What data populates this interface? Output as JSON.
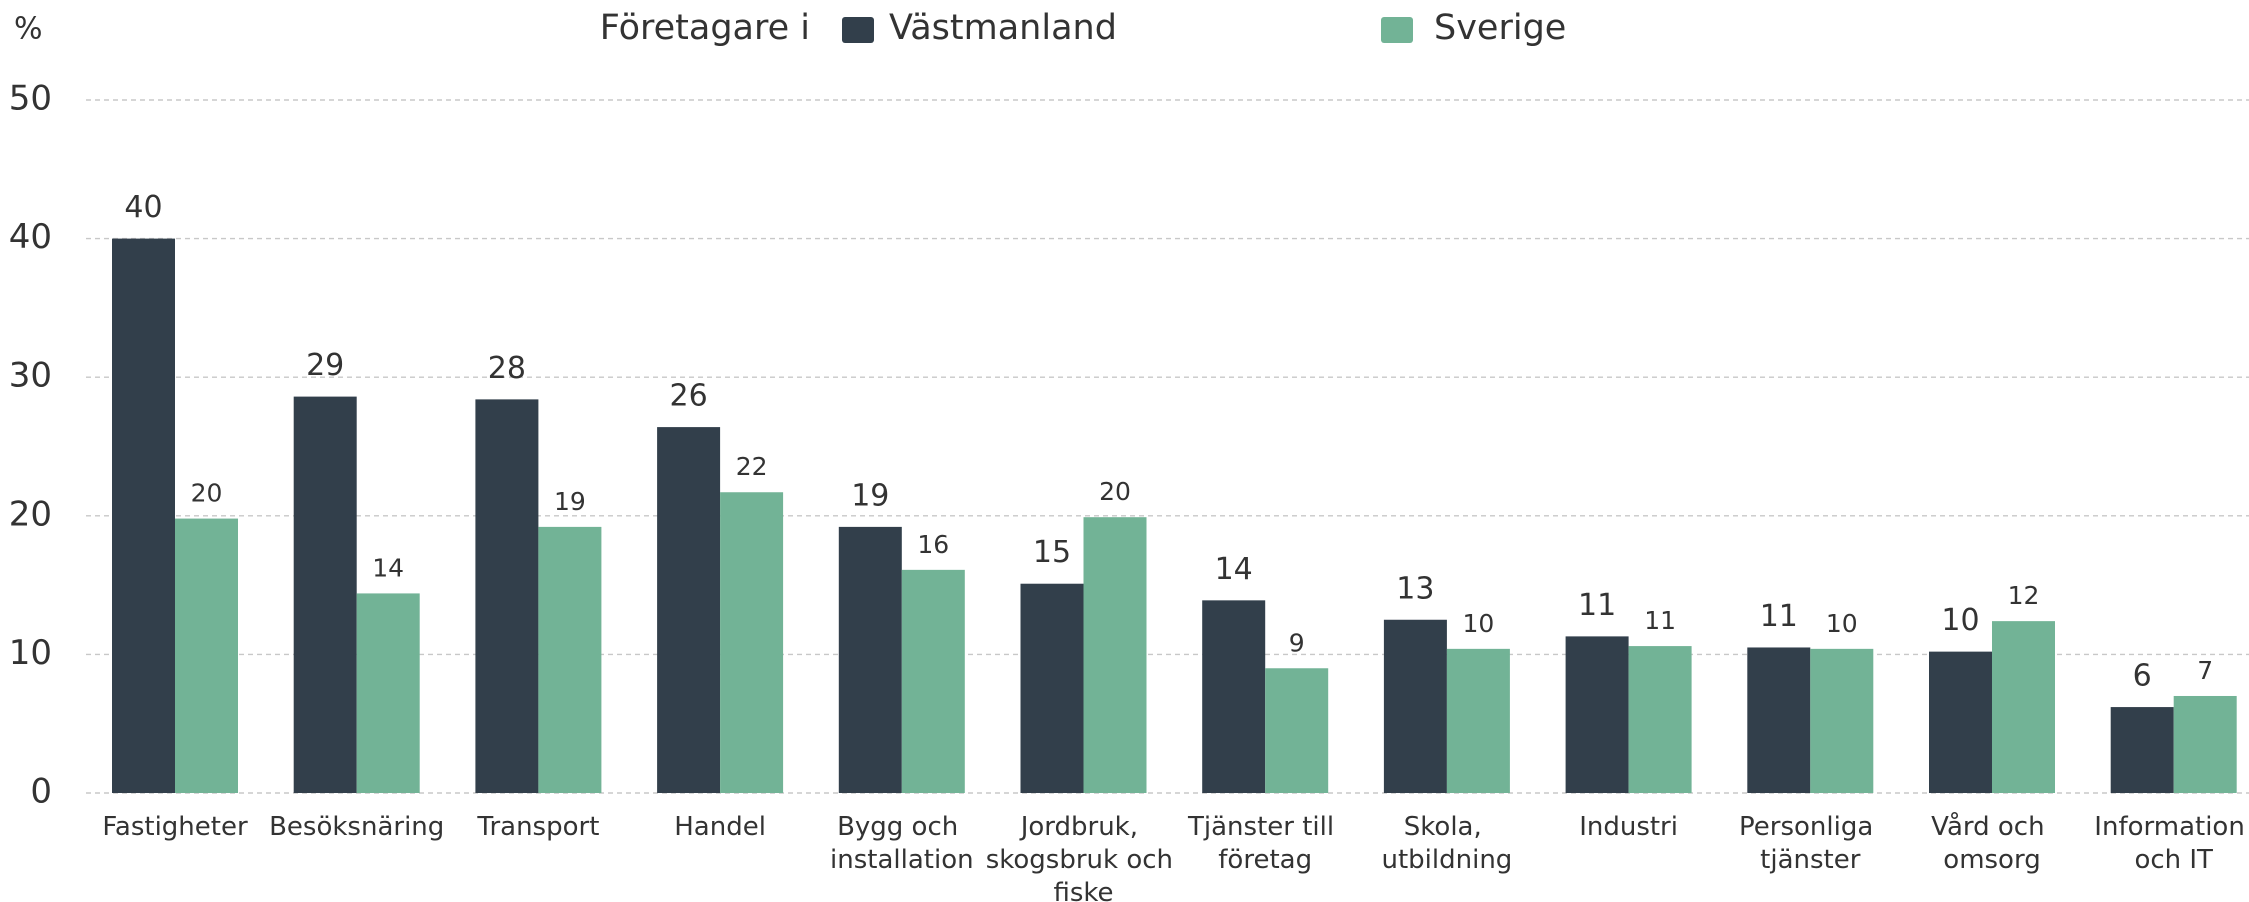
{
  "chart_data": {
    "type": "bar",
    "y_label": "%",
    "legend_title": "Företagare i",
    "categories": [
      "Fastigheter",
      "Besöksnäring",
      "Transport",
      "Handel",
      "Bygg och installation",
      "Jordbruk, skogsbruk och fiske",
      "Tjänster till företag",
      "Skola, utbildning",
      "Industri",
      "Personliga tjänster",
      "Vård och omsorg",
      "Information och IT"
    ],
    "series": [
      {
        "name": "Västmanland",
        "color": "#323f4b",
        "values": [
          40,
          28.6,
          28.4,
          26.4,
          19.2,
          15.1,
          13.9,
          12.5,
          11.3,
          10.5,
          10.2,
          6.2
        ],
        "value_labels": [
          "40",
          "29",
          "28",
          "26",
          "19",
          "15",
          "14",
          "13",
          "11",
          "11",
          "10",
          "6"
        ]
      },
      {
        "name": "Sverige",
        "color": "#72b396",
        "values": [
          19.8,
          14.4,
          19.2,
          21.7,
          16.1,
          19.9,
          9.0,
          10.4,
          10.6,
          10.4,
          12.4,
          7.0
        ],
        "value_labels": [
          "20",
          "14",
          "19",
          "22",
          "16",
          "20",
          "9",
          "10",
          "11",
          "10",
          "12",
          "7"
        ]
      }
    ],
    "ylim": [
      0,
      50
    ],
    "yticks": [
      0,
      10,
      20,
      30,
      40,
      50
    ],
    "grid": true
  }
}
